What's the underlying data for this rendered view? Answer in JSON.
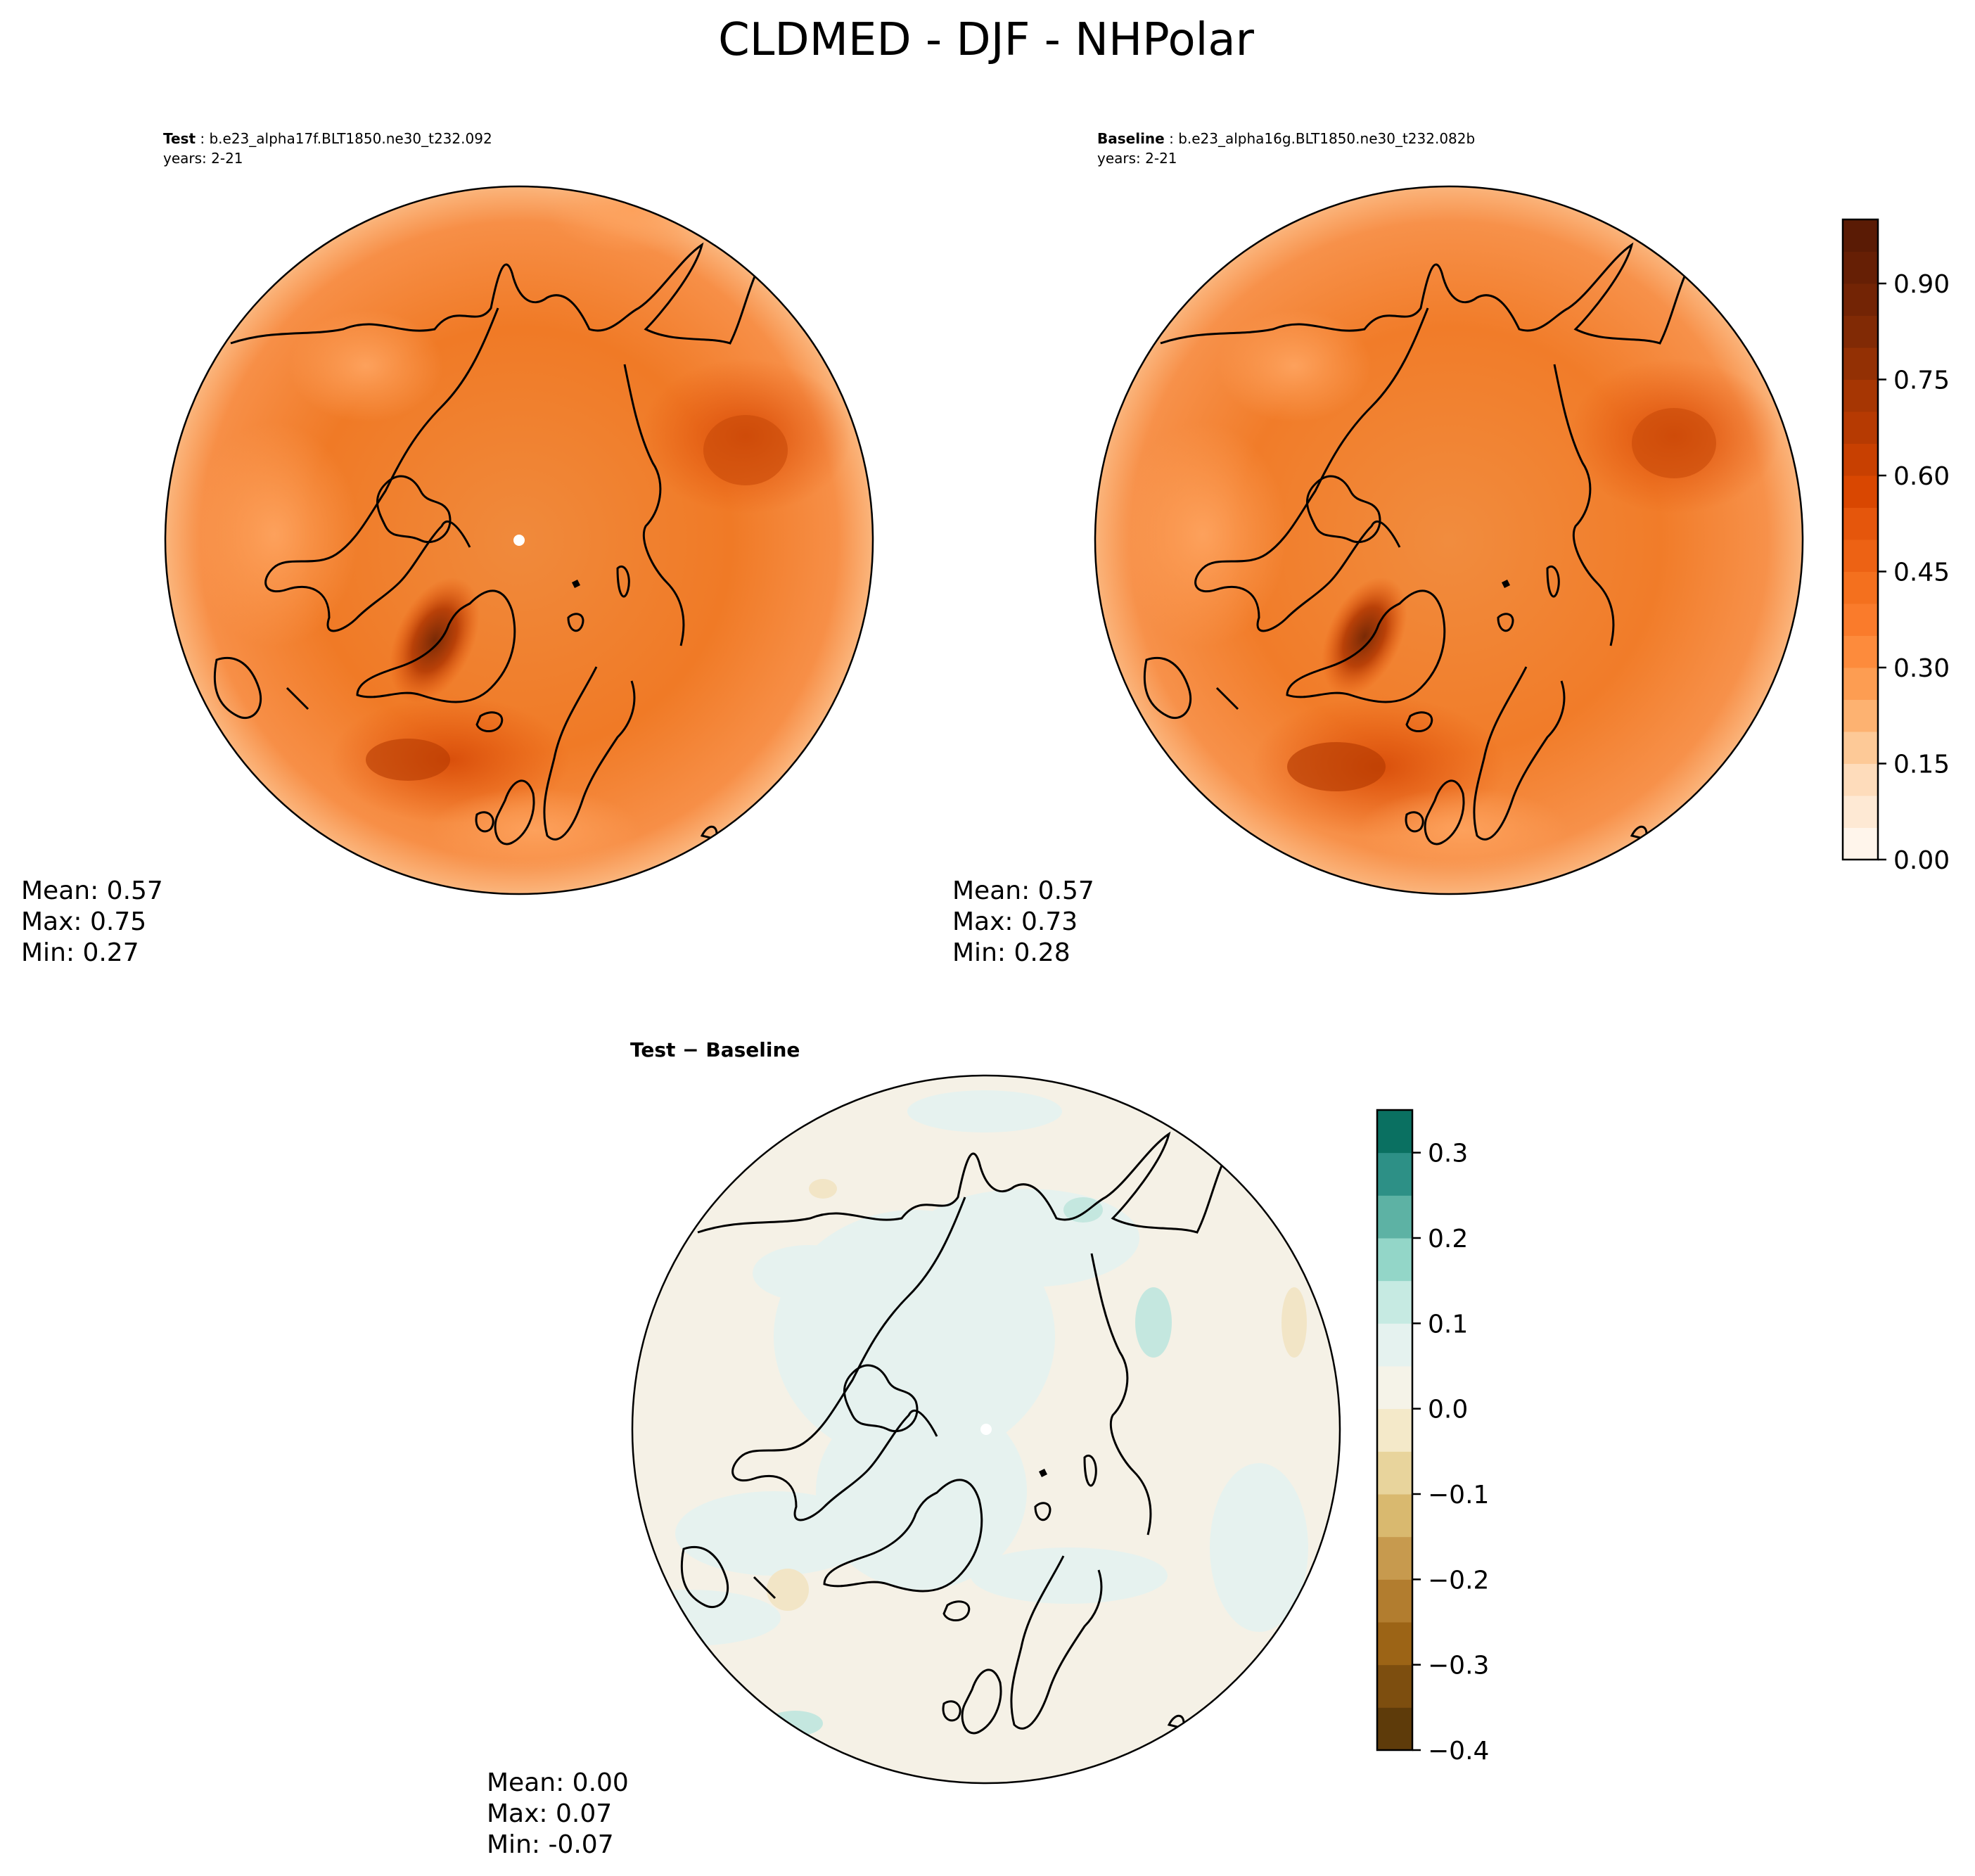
{
  "figure": {
    "title": "CLDMED - DJF - NHPolar"
  },
  "panels": [
    {
      "id": "test",
      "label_bold": "Test",
      "label_rest": " : b.e23_alpha17f.BLT1850.ne30_t232.092",
      "years": "years: 2-21",
      "stats": [
        "Mean:  0.57",
        "Max:  0.75",
        "Min:  0.27"
      ]
    },
    {
      "id": "baseline",
      "label_bold": "Baseline",
      "label_rest": " : b.e23_alpha16g.BLT1850.ne30_t232.082b",
      "years": "years: 2-21",
      "stats": [
        "Mean:  0.57",
        "Max:  0.73",
        "Min:  0.28"
      ]
    },
    {
      "id": "diff",
      "label_bold": "Test − Baseline",
      "stats": [
        "Mean:  0.00",
        "Max:  0.07",
        "Min: -0.07"
      ]
    }
  ],
  "colorbars": {
    "main": {
      "colormap": "Oranges",
      "levels": [
        0.0,
        0.05,
        0.1,
        0.15,
        0.2,
        0.25,
        0.3,
        0.35,
        0.4,
        0.45,
        0.5,
        0.55,
        0.6,
        0.65,
        0.7,
        0.75,
        0.8,
        0.85,
        0.9,
        0.95,
        1.0
      ],
      "colors": [
        "#fff5eb",
        "#fee9d4",
        "#fedcbb",
        "#fdc997",
        "#fdb271",
        "#fd9d52",
        "#fd8b3c",
        "#fa7b2b",
        "#f4701e",
        "#ed6214",
        "#e5560c",
        "#d94701",
        "#c84001",
        "#b63a02",
        "#a63603",
        "#933004",
        "#812a05",
        "#732405",
        "#661f05",
        "#5a1b05"
      ],
      "ticks": [
        {
          "v": 0.0,
          "t": "0.00"
        },
        {
          "v": 0.15,
          "t": "0.15"
        },
        {
          "v": 0.3,
          "t": "0.30"
        },
        {
          "v": 0.45,
          "t": "0.45"
        },
        {
          "v": 0.6,
          "t": "0.60"
        },
        {
          "v": 0.75,
          "t": "0.75"
        },
        {
          "v": 0.9,
          "t": "0.90"
        }
      ]
    },
    "diff": {
      "colormap": "BrBG",
      "levels": [
        -0.4,
        -0.35,
        -0.3,
        -0.25,
        -0.2,
        -0.15,
        -0.1,
        -0.05,
        0.0,
        0.05,
        0.1,
        0.15,
        0.2,
        0.25,
        0.3,
        0.35
      ],
      "colors": [
        "#5e3b0a",
        "#7d4e0f",
        "#9c6416",
        "#b27d2f",
        "#c79a4e",
        "#d9b96f",
        "#e8d49c",
        "#f4e9c9",
        "#f5f3e8",
        "#e5f2ef",
        "#c6eae2",
        "#93d6c8",
        "#5db2a4",
        "#2d9086",
        "#0a7061"
      ],
      "ticks": [
        {
          "v": -0.4,
          "t": "−0.4"
        },
        {
          "v": -0.3,
          "t": "−0.3"
        },
        {
          "v": -0.2,
          "t": "−0.2"
        },
        {
          "v": -0.1,
          "t": "−0.1"
        },
        {
          "v": 0.0,
          "t": "0.0"
        },
        {
          "v": 0.1,
          "t": "0.1"
        },
        {
          "v": 0.2,
          "t": "0.2"
        },
        {
          "v": 0.3,
          "t": "0.3"
        }
      ]
    }
  },
  "chart_data": {
    "type": "heatmap",
    "title": "CLDMED - DJF - NHPolar",
    "projection": "north-polar-stereographic",
    "maps": [
      {
        "name": "Test",
        "mean": 0.57,
        "max": 0.75,
        "min": 0.27
      },
      {
        "name": "Baseline",
        "mean": 0.57,
        "max": 0.73,
        "min": 0.28
      },
      {
        "name": "Test − Baseline",
        "mean": 0.0,
        "max": 0.07,
        "min": -0.07
      }
    ],
    "colorbar_ranges": {
      "main": [
        0.0,
        1.0
      ],
      "diff": [
        -0.4,
        0.35
      ]
    }
  }
}
